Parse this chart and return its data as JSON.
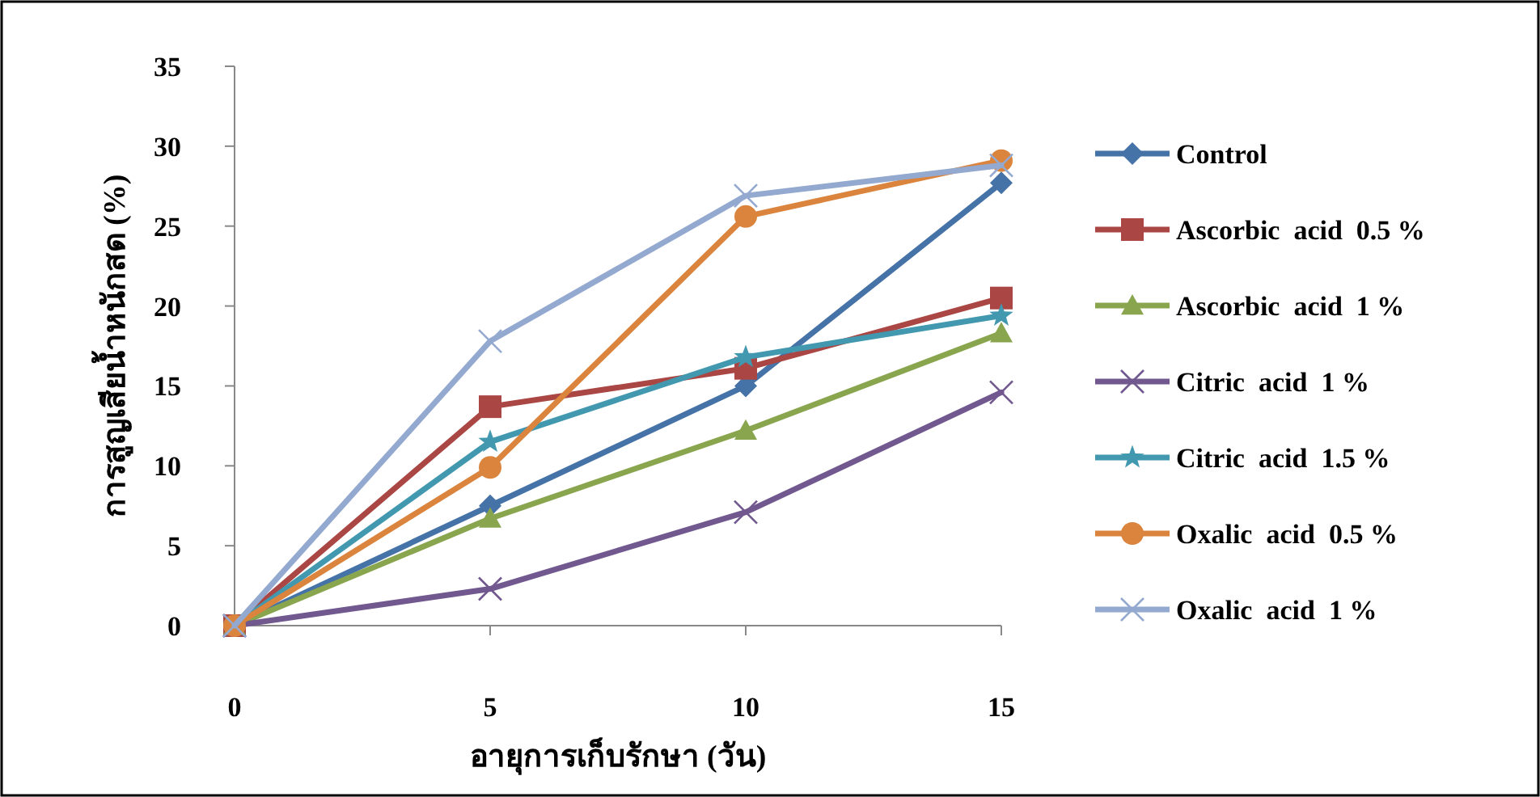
{
  "chart_data": {
    "type": "line",
    "xlabel": "อายุการเก็บรักษา (วัน)",
    "ylabel": "การสูญเสียน้ำหนักสด (%)",
    "x": [
      0,
      5,
      10,
      15
    ],
    "xlim": [
      0,
      15
    ],
    "xticks": [
      0,
      5,
      10,
      15
    ],
    "ylim": [
      0,
      35
    ],
    "yticks": [
      0,
      5,
      10,
      15,
      20,
      25,
      30,
      35
    ],
    "grid": false,
    "legend": "right",
    "series": [
      {
        "name": "Control",
        "color": "#4572a7",
        "marker": "diamond",
        "values": [
          0,
          7.5,
          15,
          27.7
        ]
      },
      {
        "name": "Ascorbic  acid  0.5 %",
        "color": "#aa4643",
        "marker": "square",
        "values": [
          0,
          13.7,
          16.1,
          20.5
        ]
      },
      {
        "name": "Ascorbic  acid  1 %",
        "color": "#89a54e",
        "marker": "triangle",
        "values": [
          0,
          6.7,
          12.2,
          18.3
        ]
      },
      {
        "name": "Citric  acid  1 %",
        "color": "#71588f",
        "marker": "cross",
        "values": [
          0,
          2.3,
          7.1,
          14.6
        ]
      },
      {
        "name": "Citric  acid  1.5 %",
        "color": "#4198af",
        "marker": "star",
        "values": [
          0,
          11.5,
          16.8,
          19.4
        ]
      },
      {
        "name": "Oxalic  acid  0.5 %",
        "color": "#db843d",
        "marker": "circle",
        "values": [
          0,
          9.9,
          25.6,
          29.1
        ]
      },
      {
        "name": "Oxalic  acid  1 %",
        "color": "#93a9cf",
        "marker": "cross",
        "values": [
          0,
          17.8,
          26.9,
          28.8
        ]
      }
    ]
  }
}
